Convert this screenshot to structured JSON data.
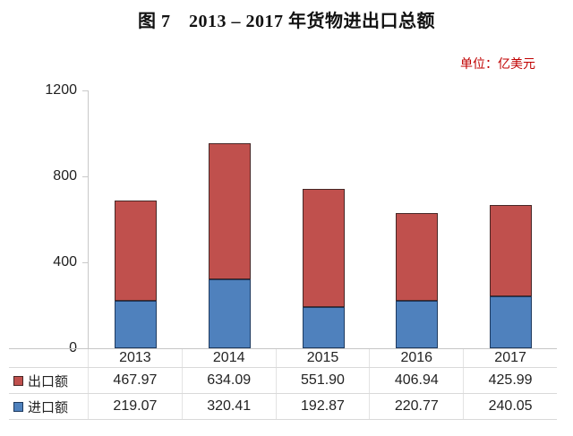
{
  "figure": {
    "title": "图 7　2013 – 2017 年货物进出口总额",
    "unit_label": "单位：亿美元",
    "unit_label_color": "#C00000"
  },
  "chart_data": {
    "type": "bar",
    "stacked": true,
    "title": "图 7　2013 – 2017 年货物进出口总额",
    "unit": "亿美元",
    "categories": [
      "2013",
      "2014",
      "2015",
      "2016",
      "2017"
    ],
    "series": [
      {
        "name": "出口额",
        "color": "#C0504D",
        "border_color": "#472726",
        "values": [
          467.97,
          634.09,
          551.9,
          406.94,
          425.99
        ]
      },
      {
        "name": "进口额",
        "color": "#4F81BD",
        "border_color": "#1E3A5F",
        "values": [
          219.07,
          320.41,
          192.87,
          220.77,
          240.05
        ]
      }
    ],
    "stack_order_bottom_to_top": [
      "进口额",
      "出口额"
    ],
    "ylim": [
      0,
      1200
    ],
    "yticks": [
      0,
      400,
      800,
      1200
    ],
    "grid": false,
    "legend_position": "table-rows-left",
    "value_decimals": 2,
    "axis_color": "#c9c9c9"
  }
}
